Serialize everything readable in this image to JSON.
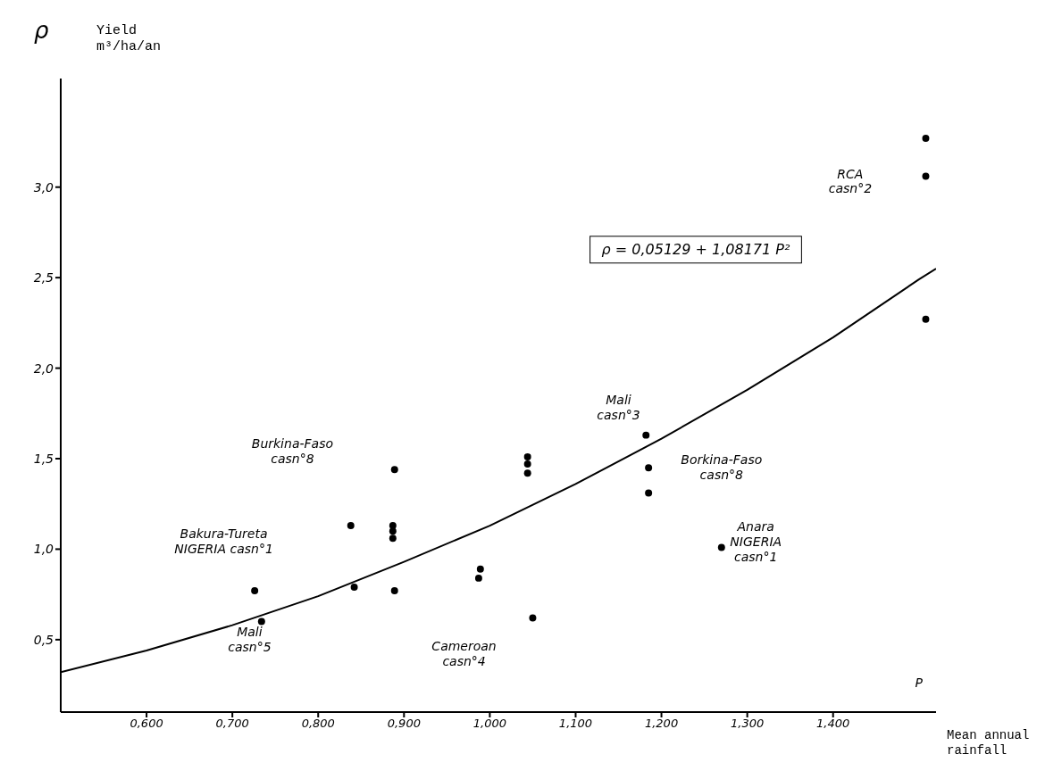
{
  "chart_data": {
    "type": "scatter",
    "xlabel": "Mean annual\nrainfall",
    "ylabel": "Yield\nm³/ha/an",
    "xlim": [
      0.5,
      1.52
    ],
    "ylim": [
      0.1,
      3.6
    ],
    "xticks": [
      {
        "value": 0.6,
        "label": "0,600"
      },
      {
        "value": 0.7,
        "label": "0,700"
      },
      {
        "value": 0.8,
        "label": "0,800"
      },
      {
        "value": 0.9,
        "label": "0,900"
      },
      {
        "value": 1.0,
        "label": "1,000"
      },
      {
        "value": 1.1,
        "label": "1,100"
      },
      {
        "value": 1.2,
        "label": "1,200"
      },
      {
        "value": 1.3,
        "label": "1,300"
      },
      {
        "value": 1.4,
        "label": "1,400"
      }
    ],
    "yticks": [
      {
        "value": 0.5,
        "label": "0,5"
      },
      {
        "value": 1.0,
        "label": "1,0"
      },
      {
        "value": 1.5,
        "label": "1,5"
      },
      {
        "value": 2.0,
        "label": "2,0"
      },
      {
        "value": 2.5,
        "label": "2,5"
      },
      {
        "value": 3.0,
        "label": "3,0"
      }
    ],
    "grid": false,
    "marker": "circle",
    "series": [
      {
        "color": "#000000",
        "x": [
          0.726,
          0.734,
          0.889,
          0.838,
          0.887,
          0.887,
          0.887,
          0.842,
          0.889,
          0.989,
          0.987,
          1.05,
          1.044,
          1.044,
          1.044,
          1.182,
          1.185,
          1.185,
          1.27,
          1.508,
          1.508,
          1.508
        ],
        "values": [
          0.77,
          0.6,
          1.44,
          1.13,
          1.13,
          1.1,
          1.06,
          0.79,
          0.77,
          0.89,
          0.84,
          0.62,
          1.51,
          1.47,
          1.42,
          1.63,
          1.45,
          1.31,
          1.01,
          3.27,
          3.06,
          2.27
        ]
      },
      {
        "type": "line",
        "color": "#000000",
        "marker": "none",
        "x": [
          0.5,
          0.6,
          0.7,
          0.8,
          0.9,
          1.0,
          1.1,
          1.2,
          1.3,
          1.4,
          1.5,
          1.52
        ],
        "values": [
          0.32,
          0.44,
          0.58,
          0.74,
          0.93,
          1.13,
          1.36,
          1.61,
          1.88,
          2.17,
          2.49,
          2.55
        ]
      }
    ],
    "annotations": [
      "ρ",
      "P",
      "Burkina-Faso\ncasn°8",
      "Bakura-Tureta\nNIGERIA casn°1",
      "Mali\ncasn°5",
      "Cameroan\ncasn°4",
      "Mali\ncasn°3",
      "Borkina-Faso\ncasn°8",
      "Anara\nNIGERIA\ncasn°1",
      "RCA\ncasn°2",
      "ρ = 0,05129 + 1,08171 P²"
    ]
  }
}
